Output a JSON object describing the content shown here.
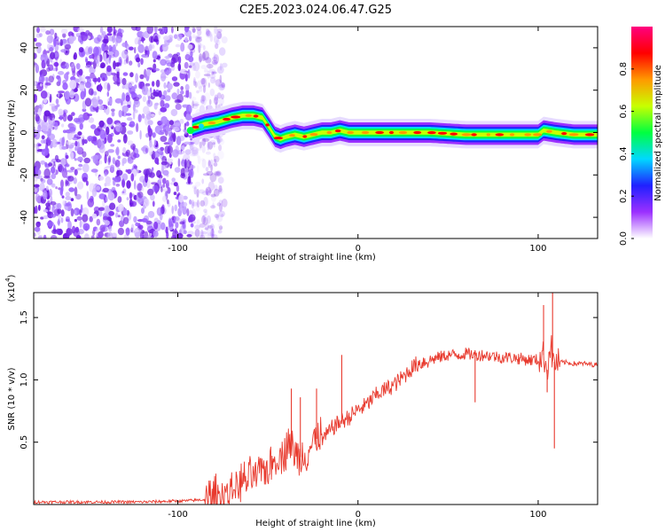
{
  "figure": {
    "title": "C2E5.2023.024.06.47.G25"
  },
  "chart_data": [
    {
      "type": "heatmap",
      "title": "C2E5.2023.024.06.47.G25",
      "xlabel": "Height of straight line (km)",
      "ylabel": "Frequency (Hz)",
      "xlim": [
        -180,
        133
      ],
      "ylim": [
        -50,
        50
      ],
      "xticks": [
        -100,
        0,
        100
      ],
      "yticks": [
        -40,
        -20,
        0,
        20,
        40
      ],
      "colorbar": {
        "label": "Normalized spectral amplitude",
        "range": [
          0,
          1
        ],
        "ticks": [
          0.0,
          0.2,
          0.4,
          0.6,
          0.8
        ],
        "colormap": [
          "#ffffff",
          "#9b30ff",
          "#2020ff",
          "#00d8ff",
          "#00ff40",
          "#c8ff00",
          "#ff9900",
          "#ff0000",
          "#ff0080"
        ]
      },
      "noise_region_x": [
        -180,
        -80
      ],
      "ridge": {
        "x": [
          -92,
          -85,
          -78,
          -70,
          -64,
          -58,
          -53,
          -49,
          -46,
          -43,
          -40,
          -35,
          -30,
          -25,
          -20,
          -15,
          -10,
          -5,
          0,
          10,
          20,
          30,
          40,
          60,
          80,
          100,
          103,
          110,
          120,
          133
        ],
        "y": [
          2,
          4,
          5,
          7,
          8,
          8,
          7,
          2,
          -2,
          -3,
          -2,
          -1,
          -2,
          -1,
          0,
          0,
          1,
          0,
          0,
          0,
          0,
          0,
          0,
          -1,
          -1,
          -1,
          1,
          0,
          -1,
          -1
        ]
      }
    },
    {
      "type": "line",
      "xlabel": "Height of straight line (km)",
      "ylabel": "SNR (10 * v/v)",
      "yscale_label": "(x10",
      "yscale_exponent": "4",
      "xlim": [
        -180,
        133
      ],
      "ylim": [
        0,
        1.7
      ],
      "xticks": [
        -100,
        0,
        100
      ],
      "yticks": [
        0.5,
        1.0,
        1.5
      ],
      "color": "#e83a2e",
      "series": [
        {
          "x": [
            -180,
            -150,
            -120,
            -95,
            -85,
            -78,
            -72,
            -68,
            -64,
            -60,
            -55,
            -50,
            -45,
            -42,
            -38,
            -35,
            -32,
            -28,
            -25,
            -22,
            -20,
            -17,
            -14,
            -10,
            -5,
            0,
            5,
            8,
            12,
            15,
            20,
            25,
            28,
            32,
            35,
            40,
            45,
            50,
            55,
            60,
            65,
            70,
            75,
            80,
            85,
            90,
            95,
            100,
            103,
            105,
            107,
            108,
            110,
            115,
            120,
            125,
            133
          ],
          "y": [
            0.02,
            0.02,
            0.02,
            0.03,
            0.04,
            0.06,
            0.1,
            0.14,
            0.18,
            0.2,
            0.24,
            0.3,
            0.38,
            0.42,
            0.5,
            0.4,
            0.38,
            0.44,
            0.48,
            0.55,
            0.52,
            0.56,
            0.62,
            0.66,
            0.7,
            0.76,
            0.8,
            0.85,
            0.9,
            0.92,
            0.96,
            1.02,
            1.07,
            1.12,
            1.14,
            1.16,
            1.18,
            1.2,
            1.2,
            1.21,
            1.2,
            1.2,
            1.19,
            1.18,
            1.18,
            1.17,
            1.16,
            1.16,
            1.2,
            1.08,
            1.3,
            1.15,
            1.14,
            1.14,
            1.13,
            1.13,
            1.12
          ]
        }
      ],
      "spikes": [
        {
          "x": -37,
          "y": 0.93
        },
        {
          "x": -32,
          "y": 0.86
        },
        {
          "x": -23,
          "y": 0.93
        },
        {
          "x": -9,
          "y": 1.2
        },
        {
          "x": 65,
          "y": 0.82
        },
        {
          "x": 103,
          "y": 1.6
        },
        {
          "x": 105,
          "y": 0.9
        },
        {
          "x": 108,
          "y": 1.7
        },
        {
          "x": 109,
          "y": 0.45
        }
      ]
    }
  ]
}
